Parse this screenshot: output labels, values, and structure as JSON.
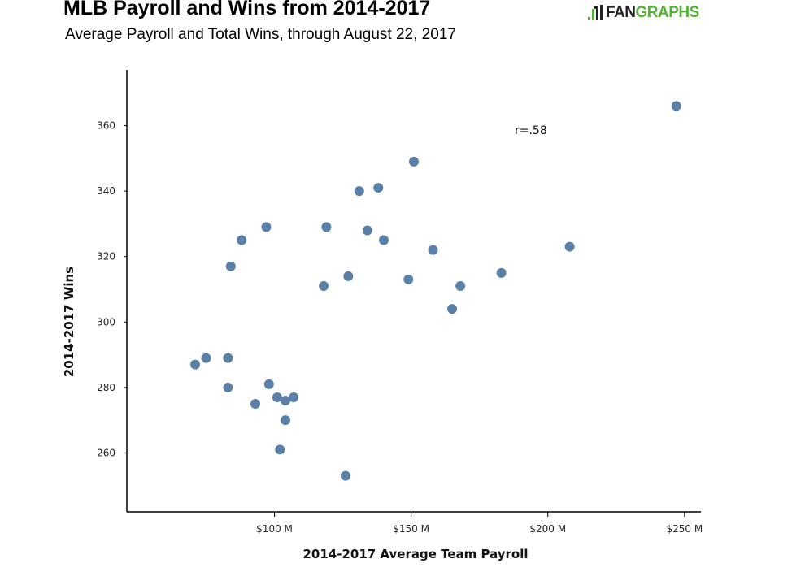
{
  "header": {
    "title": "MLB Payroll and Wins from 2014-2017",
    "subtitle": "Average Payroll and Total Wins, through August 22, 2017"
  },
  "logo": {
    "text_fan": "FAN",
    "text_graphs": "GRAPHS",
    "icon": "fangraphs-logo-icon"
  },
  "colors": {
    "point": "#5b80a8",
    "axis": "#000000",
    "logo_green": "#55b236"
  },
  "chart_data": {
    "type": "scatter",
    "title": "MLB Payroll and Wins from 2014-2017",
    "subtitle": "Average Payroll and Total Wins, through August 22, 2017",
    "xlabel": "2014-2017 Average Team Payroll",
    "ylabel": "2014-2017 Wins",
    "xunit": "M (millions of dollars)",
    "xlim": [
      46,
      256
    ],
    "ylim": [
      242,
      377
    ],
    "xticks": [
      100,
      150,
      200,
      250
    ],
    "xtick_labels": [
      "$100 M",
      "$150 M",
      "$200 M",
      "$250 M"
    ],
    "yticks": [
      260,
      280,
      300,
      320,
      340,
      360
    ],
    "ytick_labels": [
      "260",
      "280",
      "300",
      "320",
      "340",
      "360"
    ],
    "grid": false,
    "annotation": "r=.58",
    "points": [
      {
        "x": 71,
        "y": 287
      },
      {
        "x": 75,
        "y": 289
      },
      {
        "x": 83,
        "y": 289
      },
      {
        "x": 83,
        "y": 280
      },
      {
        "x": 84,
        "y": 317
      },
      {
        "x": 88,
        "y": 325
      },
      {
        "x": 93,
        "y": 275
      },
      {
        "x": 97,
        "y": 329
      },
      {
        "x": 98,
        "y": 281
      },
      {
        "x": 101,
        "y": 277
      },
      {
        "x": 102,
        "y": 261
      },
      {
        "x": 104,
        "y": 276
      },
      {
        "x": 104,
        "y": 270
      },
      {
        "x": 107,
        "y": 277
      },
      {
        "x": 118,
        "y": 311
      },
      {
        "x": 119,
        "y": 329
      },
      {
        "x": 126,
        "y": 253
      },
      {
        "x": 127,
        "y": 314
      },
      {
        "x": 131,
        "y": 340
      },
      {
        "x": 134,
        "y": 328
      },
      {
        "x": 138,
        "y": 341
      },
      {
        "x": 140,
        "y": 325
      },
      {
        "x": 149,
        "y": 313
      },
      {
        "x": 151,
        "y": 349
      },
      {
        "x": 158,
        "y": 322
      },
      {
        "x": 165,
        "y": 304
      },
      {
        "x": 168,
        "y": 311
      },
      {
        "x": 183,
        "y": 315
      },
      {
        "x": 208,
        "y": 323
      },
      {
        "x": 247,
        "y": 366
      }
    ]
  }
}
